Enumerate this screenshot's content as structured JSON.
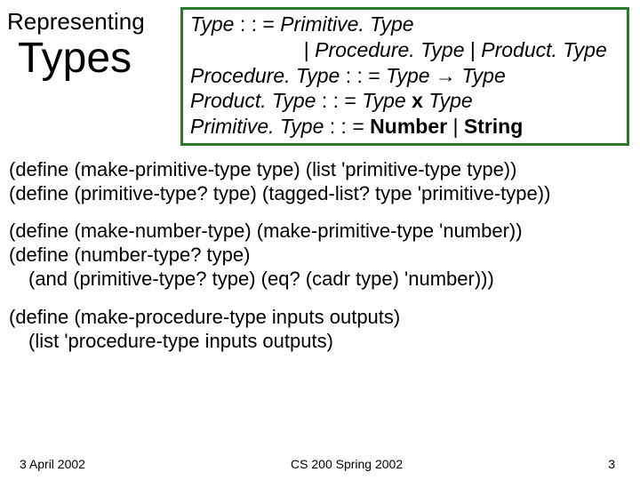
{
  "title": {
    "line1": "Representing",
    "line2": "Types"
  },
  "grammar": {
    "border_color": "#2a7a2a",
    "lines": [
      {
        "parts": [
          {
            "t": "Type",
            "s": "ital"
          },
          {
            "t": " : : = ",
            "s": ""
          },
          {
            "t": "Primitive. Type",
            "s": "ital"
          }
        ]
      },
      {
        "parts": [
          {
            "t": "                    | ",
            "s": "pad"
          },
          {
            "t": "Procedure. Type",
            "s": "ital"
          },
          {
            "t": " | ",
            "s": ""
          },
          {
            "t": "Product. Type",
            "s": "ital"
          }
        ]
      },
      {
        "parts": [
          {
            "t": "Procedure. Type",
            "s": "ital"
          },
          {
            "t": " : : = ",
            "s": ""
          },
          {
            "t": "Type",
            "s": "ital"
          },
          {
            "t": " → ",
            "s": "arrow"
          },
          {
            "t": "Type",
            "s": "ital"
          }
        ]
      },
      {
        "parts": [
          {
            "t": "Product. Type",
            "s": "ital"
          },
          {
            "t": " : : = ",
            "s": ""
          },
          {
            "t": "Type",
            "s": "ital"
          },
          {
            "t": " x ",
            "s": "bold"
          },
          {
            "t": "Type",
            "s": "ital"
          }
        ]
      },
      {
        "parts": [
          {
            "t": "Primitive. Type",
            "s": "ital"
          },
          {
            "t": " : : = ",
            "s": ""
          },
          {
            "t": "Number",
            "s": "bold"
          },
          {
            "t": " | ",
            "s": ""
          },
          {
            "t": "String",
            "s": "bold"
          }
        ]
      }
    ]
  },
  "code": {
    "block1": [
      "(define (make-primitive-type type) (list 'primitive-type type))",
      "(define (primitive-type? type) (tagged-list? type 'primitive-type))"
    ],
    "block2": [
      "(define (make-number-type) (make-primitive-type 'number))",
      "(define (number-type? type)",
      "  (and (primitive-type? type) (eq? (cadr type) 'number)))"
    ],
    "block3": [
      "(define (make-procedure-type inputs outputs)",
      "  (list 'procedure-type inputs outputs)"
    ]
  },
  "footer": {
    "date": "3 April 2002",
    "course": "CS 200 Spring 2002",
    "page": "3"
  }
}
